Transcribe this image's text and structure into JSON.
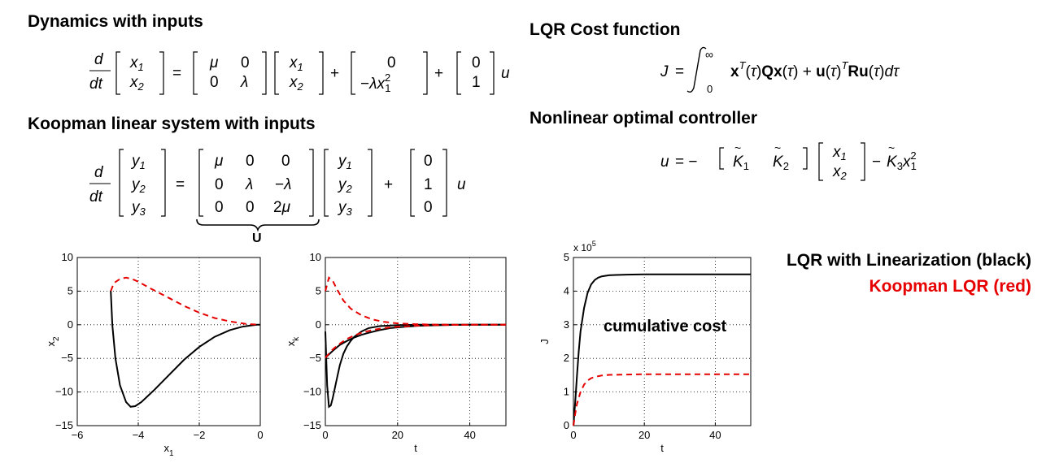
{
  "headings": {
    "dynamics": "Dynamics with inputs",
    "koopman": "Koopman linear system with inputs",
    "lqr_cost": "LQR Cost function",
    "nonlinear_controller": "Nonlinear optimal controller",
    "legend_black": "LQR with Linearization (black)",
    "legend_red": "Koopman LQR (red)"
  },
  "equations": {
    "cost": "J = ∫₀^∞ xᵀ(τ)Qx(τ) + u(τ)ᵀRu(τ)dτ",
    "controller": "u = −[ K̃₁ K̃₂ ][x₁; x₂] − K̃₃x₁²",
    "koopman_matrix_label": "U"
  },
  "colors": {
    "black_series": "#000000",
    "red_series": "#e60000"
  },
  "chart_data": [
    {
      "type": "line",
      "xlabel": "x1",
      "ylabel": "x2",
      "xlim": [
        -6,
        0
      ],
      "ylim": [
        -15,
        10
      ],
      "xticks": [
        "−6",
        "−4",
        "−2",
        "0"
      ],
      "yticks": [
        "10",
        "5",
        "0",
        "−5",
        "−10",
        "−15"
      ],
      "grid": true,
      "series": [
        {
          "color": "#000000",
          "style": "solid",
          "x": [
            -4.9,
            -4.85,
            -4.75,
            -4.6,
            -4.4,
            -4.25,
            -4.1,
            -3.9,
            -3.5,
            -3.0,
            -2.5,
            -2.0,
            -1.5,
            -1.0,
            -0.6,
            -0.3,
            -0.1,
            0
          ],
          "y": [
            5,
            0,
            -5,
            -9,
            -11.5,
            -12.2,
            -12.1,
            -11.5,
            -9.8,
            -7.5,
            -5.2,
            -3.3,
            -1.8,
            -0.8,
            -0.3,
            -0.1,
            0,
            0
          ]
        },
        {
          "color": "#e60000",
          "style": "dashed",
          "x": [
            -4.9,
            -4.8,
            -4.6,
            -4.4,
            -4.2,
            -4.0,
            -3.6,
            -3.0,
            -2.5,
            -2.0,
            -1.5,
            -1.0,
            -0.5,
            -0.2,
            0
          ],
          "y": [
            5,
            6.2,
            6.8,
            7.0,
            6.8,
            6.4,
            5.4,
            4.0,
            2.8,
            1.8,
            1.0,
            0.5,
            0.15,
            0.05,
            0
          ]
        }
      ]
    },
    {
      "type": "line",
      "xlabel": "t",
      "ylabel": "xk",
      "xlim": [
        0,
        50
      ],
      "ylim": [
        -15,
        10
      ],
      "xticks": [
        "0",
        "20",
        "40"
      ],
      "yticks": [
        "10",
        "5",
        "0",
        "−5",
        "−10",
        "−15"
      ],
      "grid": true,
      "series": [
        {
          "color": "#000000",
          "style": "solid",
          "x": [
            0,
            0.5,
            1,
            1.5,
            2,
            3,
            4,
            5,
            6,
            7,
            8,
            10,
            12,
            15,
            20,
            25,
            30,
            40,
            50
          ],
          "y": [
            -1,
            -9,
            -12.2,
            -12,
            -11,
            -8.5,
            -6,
            -4.3,
            -3.2,
            -2.4,
            -1.8,
            -1.0,
            -0.5,
            -0.2,
            -0.05,
            0,
            0,
            0,
            0
          ]
        },
        {
          "color": "#000000",
          "style": "solid",
          "x": [
            0,
            2,
            4,
            6,
            8,
            10,
            12,
            15,
            18,
            22,
            26,
            30,
            35,
            40,
            50
          ],
          "y": [
            -4.9,
            -3.9,
            -3.0,
            -2.4,
            -1.9,
            -1.5,
            -1.2,
            -0.8,
            -0.5,
            -0.3,
            -0.15,
            -0.08,
            -0.03,
            0,
            0
          ]
        },
        {
          "color": "#e60000",
          "style": "dashed",
          "x": [
            0,
            1,
            2,
            3,
            5,
            7,
            10,
            13,
            16,
            20,
            25,
            30,
            40,
            50
          ],
          "y": [
            5,
            7,
            6.6,
            5.5,
            3.6,
            2.4,
            1.4,
            0.8,
            0.45,
            0.2,
            0.08,
            0.03,
            0,
            0
          ]
        },
        {
          "color": "#e60000",
          "style": "dashed",
          "x": [
            0,
            2,
            4,
            6,
            8,
            10,
            13,
            16,
            20,
            25,
            30,
            40,
            50
          ],
          "y": [
            -4.9,
            -3.7,
            -2.8,
            -2.1,
            -1.6,
            -1.2,
            -0.8,
            -0.5,
            -0.3,
            -0.15,
            -0.06,
            0,
            0
          ]
        }
      ]
    },
    {
      "type": "line",
      "xlabel": "t",
      "ylabel": "J",
      "ylabel_scale": "x 10^5",
      "xlim": [
        0,
        50
      ],
      "ylim": [
        0,
        5
      ],
      "xticks": [
        "0",
        "20",
        "40"
      ],
      "yticks": [
        "5",
        "4",
        "3",
        "2",
        "1",
        "0"
      ],
      "grid": true,
      "annotation": "cumulative cost",
      "series": [
        {
          "color": "#000000",
          "style": "solid",
          "x": [
            0,
            0.5,
            1,
            1.5,
            2,
            3,
            4,
            5,
            6,
            7,
            8,
            10,
            12,
            15,
            20,
            30,
            40,
            50
          ],
          "y": [
            0,
            0.7,
            1.5,
            2.2,
            2.8,
            3.5,
            3.95,
            4.2,
            4.33,
            4.4,
            4.44,
            4.47,
            4.48,
            4.49,
            4.5,
            4.5,
            4.5,
            4.5
          ]
        },
        {
          "color": "#e60000",
          "style": "dashed",
          "x": [
            0,
            0.5,
            1,
            2,
            3,
            4,
            5,
            6,
            8,
            10,
            15,
            20,
            30,
            40,
            50
          ],
          "y": [
            0,
            0.35,
            0.65,
            1.0,
            1.22,
            1.34,
            1.41,
            1.45,
            1.49,
            1.51,
            1.52,
            1.53,
            1.53,
            1.53,
            1.53
          ]
        }
      ]
    }
  ]
}
